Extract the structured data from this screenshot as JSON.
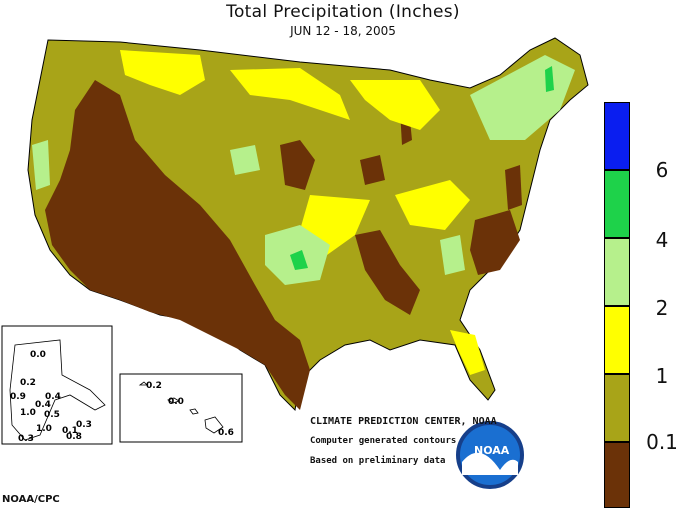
{
  "title": "Total Precipitation (Inches)",
  "subtitle": "JUN 12 - 18, 2005",
  "colors": {
    "lt_0_1": "#6b3208",
    "0_1_to_1": "#a8a418",
    "1_to_2": "#ffff00",
    "2_to_4": "#b6f08c",
    "4_to_6": "#1ed24a",
    "gt_6": "#0a1ef0"
  },
  "legend": {
    "labels": [
      "6",
      "4",
      "2",
      "1",
      "0.1"
    ]
  },
  "credits": {
    "center": "CLIMATE PREDICTION CENTER, NOAA",
    "line2": "Computer generated contours",
    "line3": "Based on preliminary data"
  },
  "source": "NOAA/CPC",
  "noaa_logo_text": "NOAA",
  "alaska_values": [
    "0.0",
    "0.2",
    "0.9",
    "0.4",
    "0.4",
    "1.0",
    "0.5",
    "1.0",
    "0.1",
    "0.3",
    "0.3",
    "0.8"
  ],
  "hawaii_values": [
    "0.2",
    "0.0",
    "0.6"
  ]
}
